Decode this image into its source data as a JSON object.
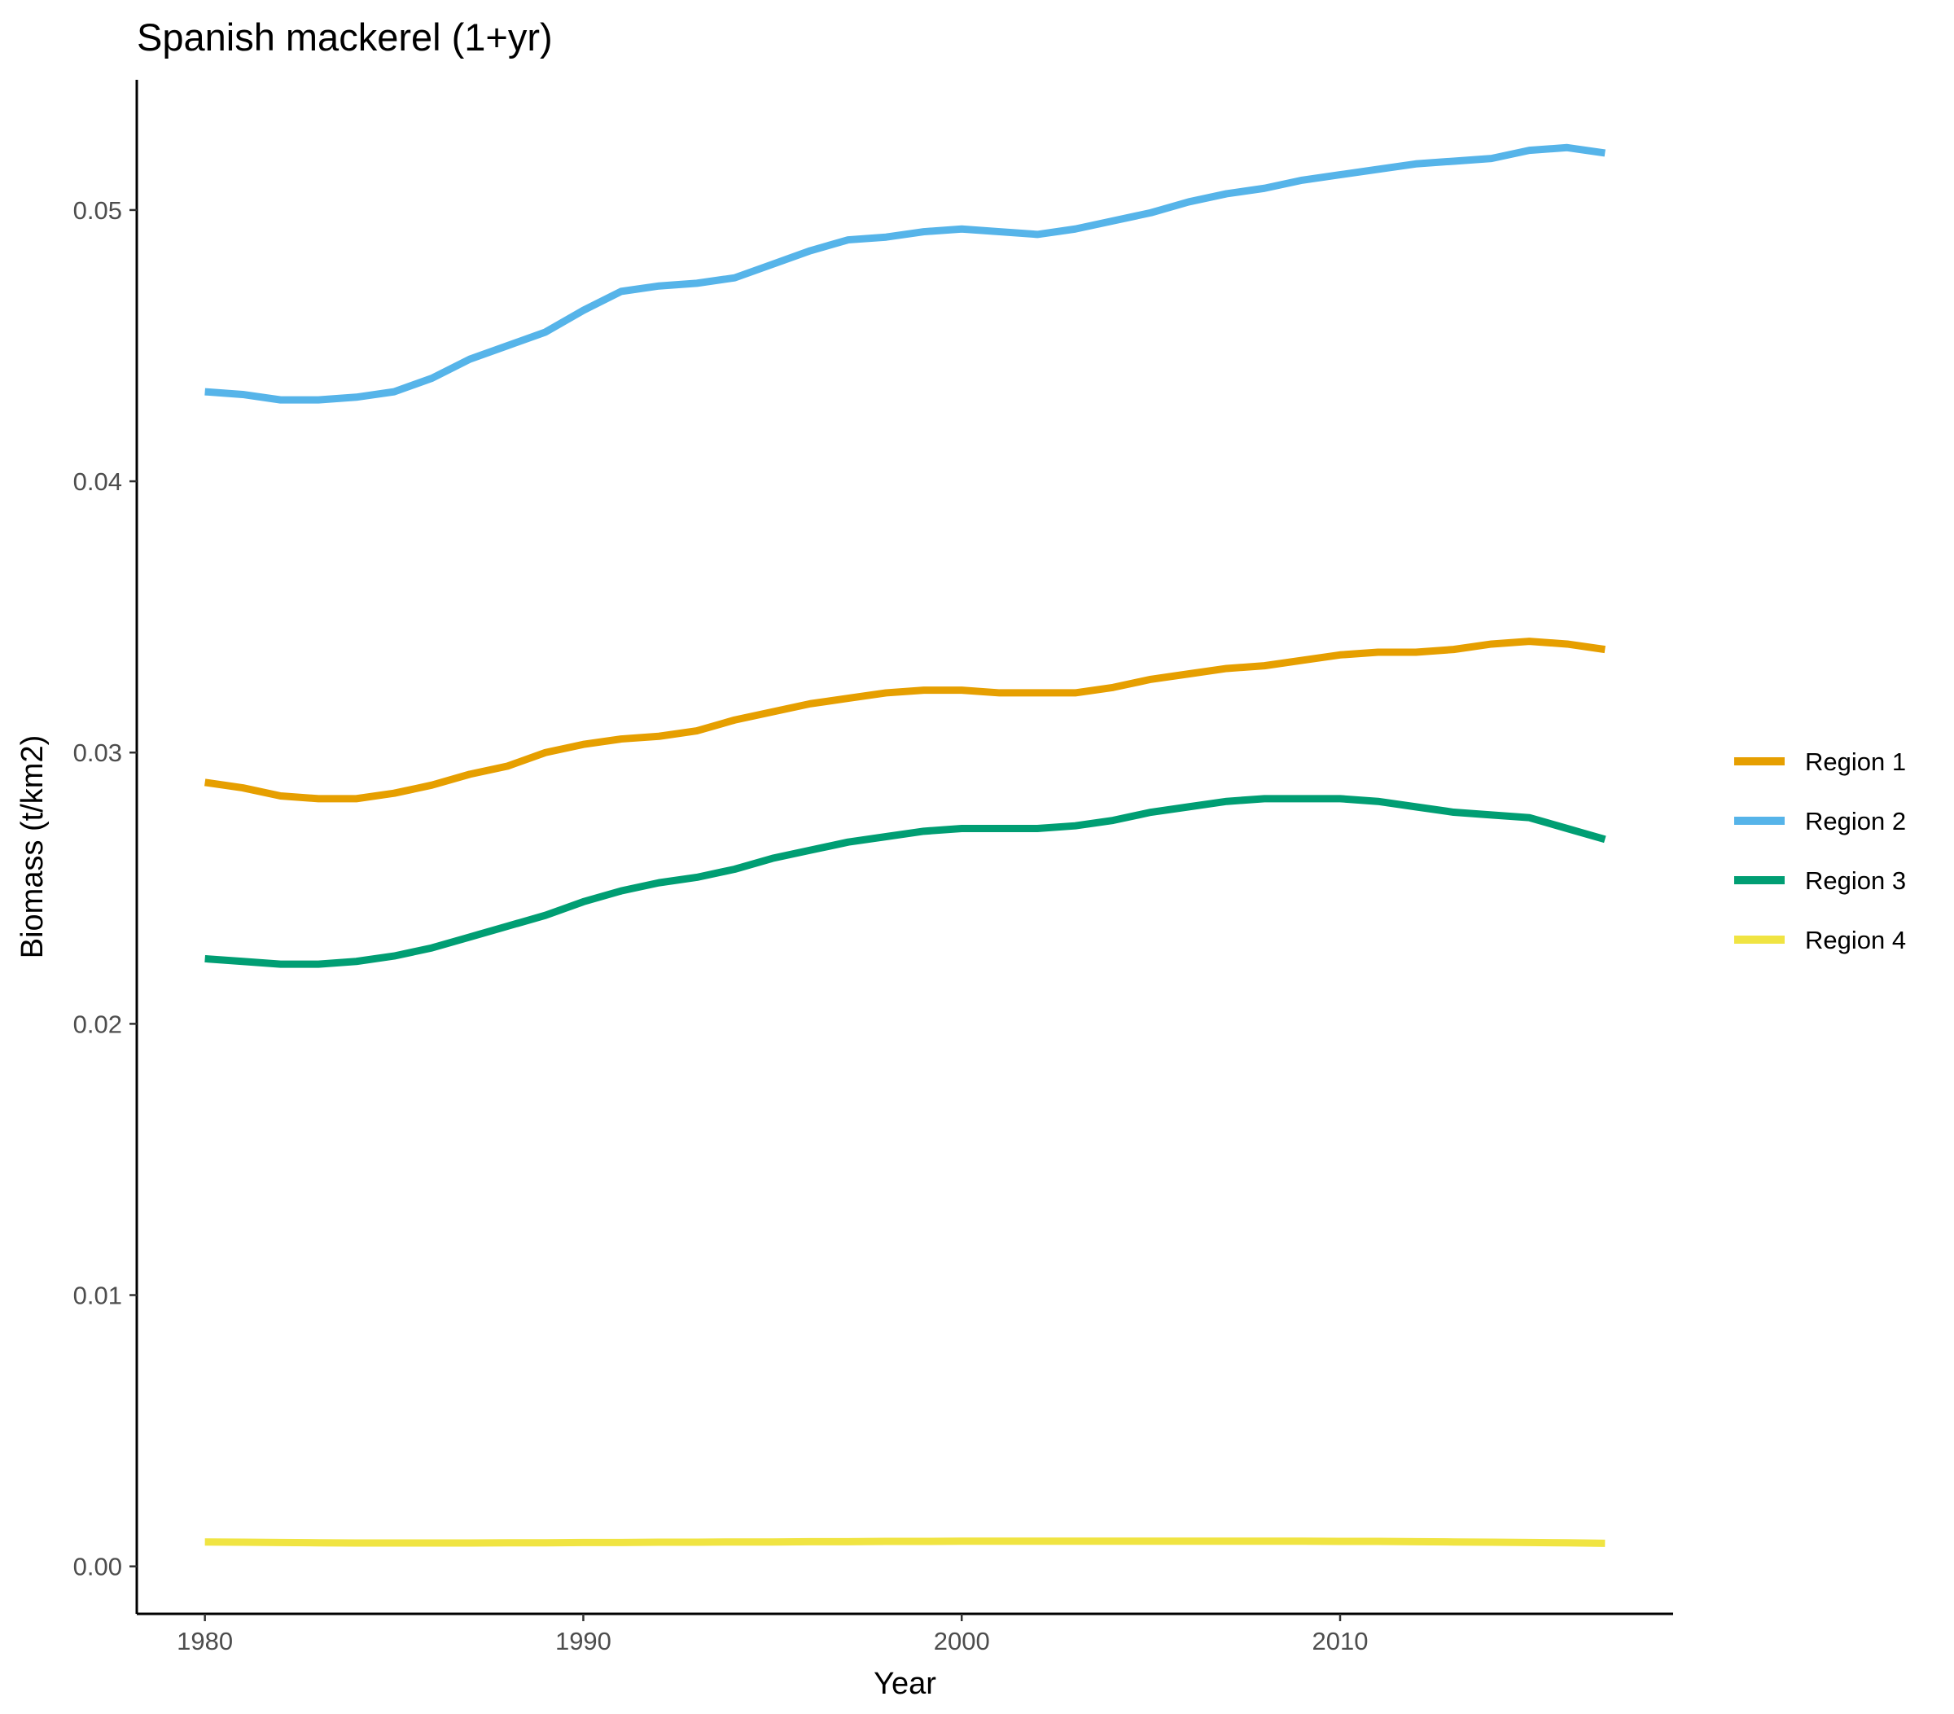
{
  "chart_data": {
    "type": "line",
    "title": "Spanish mackerel (1+yr)",
    "xlabel": "Year",
    "ylabel": "Biomass (t/km2)",
    "xlim": [
      1978.2,
      2018.8
    ],
    "ylim": [
      -0.00175,
      0.0548
    ],
    "x_ticks": [
      1980,
      1990,
      2000,
      2010
    ],
    "x_tick_labels": [
      "1980",
      "1990",
      "2000",
      "2010"
    ],
    "y_ticks": [
      0.0,
      0.01,
      0.02,
      0.03,
      0.04,
      0.05
    ],
    "y_tick_labels": [
      "0.00",
      "0.01",
      "0.02",
      "0.03",
      "0.04",
      "0.05"
    ],
    "grid": false,
    "legend_position": "right",
    "x": [
      1980,
      1981,
      1982,
      1983,
      1984,
      1985,
      1986,
      1987,
      1988,
      1989,
      1990,
      1991,
      1992,
      1993,
      1994,
      1995,
      1996,
      1997,
      1998,
      1999,
      2000,
      2001,
      2002,
      2003,
      2004,
      2005,
      2006,
      2007,
      2008,
      2009,
      2010,
      2011,
      2012,
      2013,
      2014,
      2015,
      2016,
      2017
    ],
    "series": [
      {
        "name": "Region 1",
        "color": "#E69F00",
        "values": [
          0.0289,
          0.0287,
          0.0284,
          0.0283,
          0.0283,
          0.0285,
          0.0288,
          0.0292,
          0.0295,
          0.03,
          0.0303,
          0.0305,
          0.0306,
          0.0308,
          0.0312,
          0.0315,
          0.0318,
          0.032,
          0.0322,
          0.0323,
          0.0323,
          0.0322,
          0.0322,
          0.0322,
          0.0324,
          0.0327,
          0.0329,
          0.0331,
          0.0332,
          0.0334,
          0.0336,
          0.0337,
          0.0337,
          0.0338,
          0.034,
          0.0341,
          0.034,
          0.0338
        ]
      },
      {
        "name": "Region 2",
        "color": "#56B4E9",
        "values": [
          0.0433,
          0.0432,
          0.043,
          0.043,
          0.0431,
          0.0433,
          0.0438,
          0.0445,
          0.045,
          0.0455,
          0.0463,
          0.047,
          0.0472,
          0.0473,
          0.0475,
          0.048,
          0.0485,
          0.0489,
          0.049,
          0.0492,
          0.0493,
          0.0492,
          0.0491,
          0.0493,
          0.0496,
          0.0499,
          0.0503,
          0.0506,
          0.0508,
          0.0511,
          0.0513,
          0.0515,
          0.0517,
          0.0518,
          0.0519,
          0.0522,
          0.0523,
          0.0521
        ]
      },
      {
        "name": "Region 3",
        "color": "#009E73",
        "values": [
          0.0224,
          0.0223,
          0.0222,
          0.0222,
          0.0223,
          0.0225,
          0.0228,
          0.0232,
          0.0236,
          0.024,
          0.0245,
          0.0249,
          0.0252,
          0.0254,
          0.0257,
          0.0261,
          0.0264,
          0.0267,
          0.0269,
          0.0271,
          0.0272,
          0.0272,
          0.0272,
          0.0273,
          0.0275,
          0.0278,
          0.028,
          0.0282,
          0.0283,
          0.0283,
          0.0283,
          0.0282,
          0.028,
          0.0278,
          0.0277,
          0.0276,
          0.0272,
          0.0268
        ]
      },
      {
        "name": "Region 4",
        "color": "#F0E442",
        "values": [
          0.0009,
          0.00089,
          0.00088,
          0.00087,
          0.00086,
          0.00086,
          0.00086,
          0.00086,
          0.00087,
          0.00087,
          0.00088,
          0.00088,
          0.00089,
          0.00089,
          0.0009,
          0.0009,
          0.00091,
          0.00091,
          0.00092,
          0.00092,
          0.00093,
          0.00093,
          0.00093,
          0.00093,
          0.00093,
          0.00093,
          0.00093,
          0.00093,
          0.00093,
          0.00093,
          0.00092,
          0.00092,
          0.00091,
          0.0009,
          0.00089,
          0.00088,
          0.00087,
          0.00085
        ]
      }
    ]
  }
}
